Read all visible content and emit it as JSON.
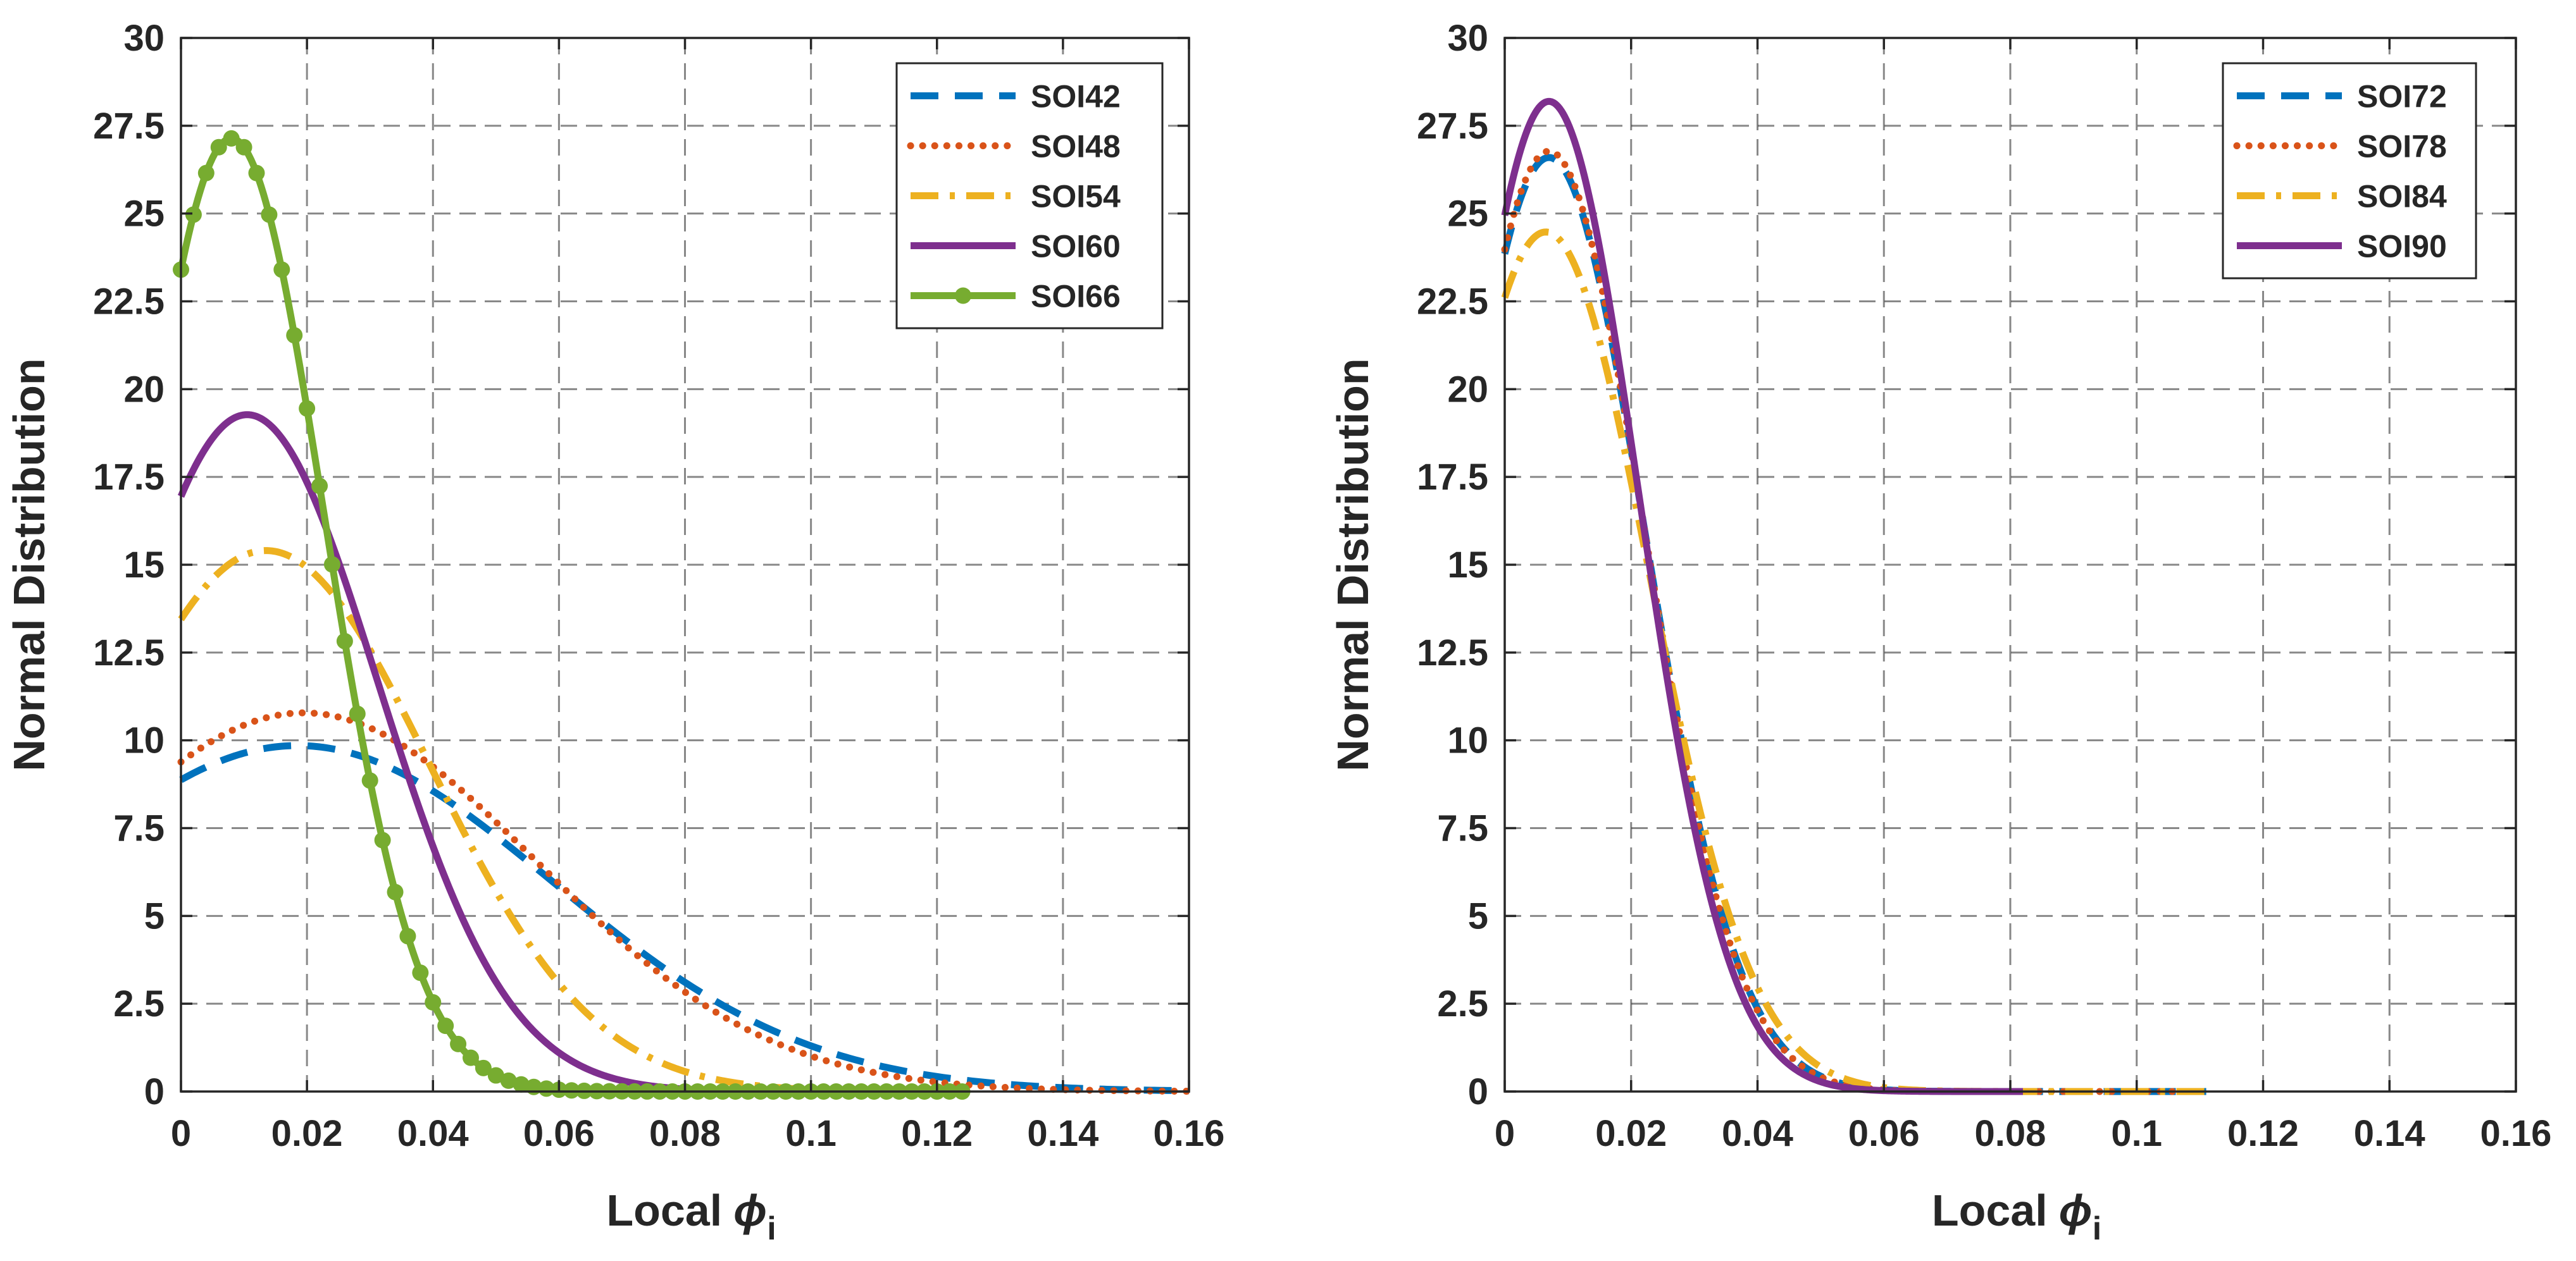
{
  "chart_data": [
    {
      "type": "line",
      "xlabel": "Local",
      "xlabel_symbol": "ϕ",
      "xlabel_subscript": "i",
      "ylabel": "Normal Distribution",
      "xlim": [
        0,
        0.16
      ],
      "ylim": [
        0,
        30
      ],
      "grid": true,
      "legend_position": "top-right",
      "xticks": [
        0,
        0.02,
        0.04,
        0.06,
        0.08,
        0.1,
        0.12,
        0.14,
        0.16
      ],
      "xtick_labels": [
        "0",
        "0.02",
        "0.04",
        "0.06",
        "0.08",
        "0.1",
        "0.12",
        "0.14",
        "0.16"
      ],
      "yticks": [
        0,
        2.5,
        5,
        7.5,
        10,
        12.5,
        15,
        17.5,
        20,
        22.5,
        25,
        27.5,
        30
      ],
      "ytick_labels": [
        "0",
        "2.5",
        "5",
        "7.5",
        "10",
        "12.5",
        "15",
        "17.5",
        "20",
        "22.5",
        "25",
        "27.5",
        "30"
      ],
      "series": [
        {
          "name": "SOI42",
          "style": "dashed",
          "color": "#0072BD",
          "mu": 0.0185,
          "sigma": 0.0405,
          "x_max": 0.16,
          "marker": false
        },
        {
          "name": "SOI48",
          "style": "dotted",
          "color": "#D95319",
          "mu": 0.0195,
          "sigma": 0.037,
          "x_max": 0.16,
          "marker": false
        },
        {
          "name": "SOI54",
          "style": "dashdot",
          "color": "#EDB120",
          "mu": 0.0135,
          "sigma": 0.0259,
          "x_max": 0.125,
          "marker": false
        },
        {
          "name": "SOI60",
          "style": "solid",
          "color": "#7E2F8E",
          "mu": 0.0105,
          "sigma": 0.0207,
          "x_max": 0.083,
          "marker": false
        },
        {
          "name": "SOI66",
          "style": "solid",
          "color": "#77AC30",
          "mu": 0.008,
          "sigma": 0.0147,
          "x_max": 0.123,
          "marker": true,
          "marker_step": 0.002
        }
      ]
    },
    {
      "type": "line",
      "xlabel": "Local",
      "xlabel_symbol": "ϕ",
      "xlabel_subscript": "i",
      "ylabel": "Normal Distribution",
      "xlim": [
        0,
        0.16
      ],
      "ylim": [
        0,
        30
      ],
      "grid": true,
      "legend_position": "top-right",
      "xticks": [
        0,
        0.02,
        0.04,
        0.06,
        0.08,
        0.1,
        0.12,
        0.14,
        0.16
      ],
      "xtick_labels": [
        "0",
        "0.02",
        "0.04",
        "0.06",
        "0.08",
        "0.1",
        "0.12",
        "0.14",
        "0.16"
      ],
      "yticks": [
        0,
        2.5,
        5,
        7.5,
        10,
        12.5,
        15,
        17.5,
        20,
        22.5,
        25,
        27.5,
        30
      ],
      "ytick_labels": [
        "0",
        "2.5",
        "5",
        "7.5",
        "10",
        "12.5",
        "15",
        "17.5",
        "20",
        "22.5",
        "25",
        "27.5",
        "30"
      ],
      "series": [
        {
          "name": "SOI72",
          "style": "dashed",
          "color": "#0072BD",
          "mu": 0.007,
          "sigma": 0.015,
          "x_max": 0.111,
          "marker": false
        },
        {
          "name": "SOI78",
          "style": "dotted",
          "color": "#D95319",
          "mu": 0.007,
          "sigma": 0.0149,
          "x_max": 0.111,
          "marker": false
        },
        {
          "name": "SOI84",
          "style": "dashdot",
          "color": "#EDB120",
          "mu": 0.0065,
          "sigma": 0.0163,
          "x_max": 0.111,
          "marker": false
        },
        {
          "name": "SOI90",
          "style": "solid",
          "color": "#7E2F8E",
          "mu": 0.007,
          "sigma": 0.01415,
          "x_max": 0.082,
          "marker": false
        }
      ]
    }
  ]
}
